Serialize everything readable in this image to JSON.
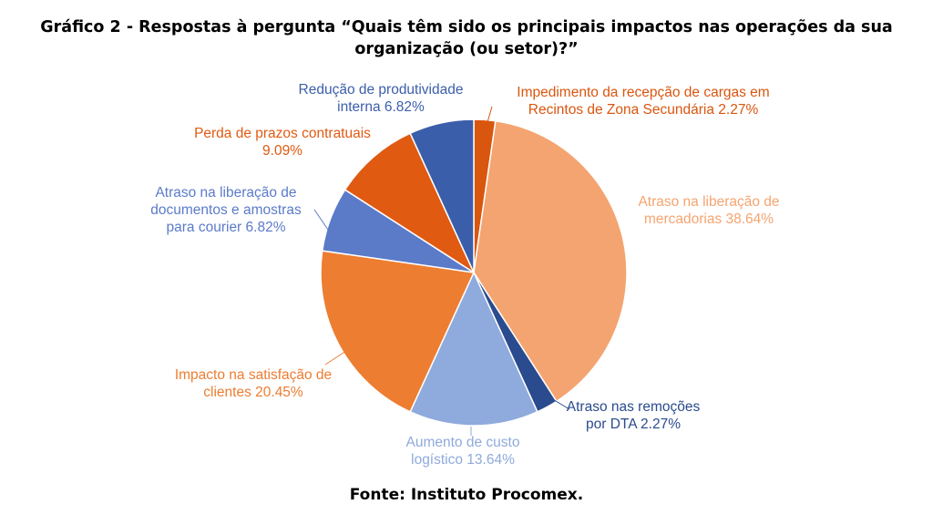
{
  "title_line1": "Gráfico 2 - Respostas à pergunta “Quais têm sido os principais impactos nas operações da sua",
  "title_line2": "organização (ou setor)?”",
  "source": "Fonte: Instituto Procomex.",
  "chart_data": {
    "type": "pie",
    "title": "Gráfico 2 - Respostas à pergunta “Quais têm sido os principais impactos nas operações da sua organização (ou setor)?”",
    "slices": [
      {
        "label_lines": [
          "Impedimento da recepção de cargas em",
          "Recintos de Zona Secundária 2.27%"
        ],
        "value": 2.27,
        "color": "#D9560F"
      },
      {
        "label_lines": [
          "Atraso na liberação de",
          "mercadorias 38.64%"
        ],
        "value": 38.64,
        "color": "#F4A470"
      },
      {
        "label_lines": [
          "Atraso nas remoções",
          "por DTA 2.27%"
        ],
        "value": 2.27,
        "color": "#2A4B8D"
      },
      {
        "label_lines": [
          "Aumento de custo",
          "logístico 13.64%"
        ],
        "value": 13.64,
        "color": "#8FAADC"
      },
      {
        "label_lines": [
          "Impacto na satisfação de",
          "clientes 20.45%"
        ],
        "value": 20.45,
        "color": "#ED7D31"
      },
      {
        "label_lines": [
          "Atraso na liberação de",
          "documentos e amostras",
          "para courier 6.82%"
        ],
        "value": 6.82,
        "color": "#5B7BC9"
      },
      {
        "label_lines": [
          "Perda de prazos contratuais",
          "9.09%"
        ],
        "value": 9.09,
        "color": "#E05A12"
      },
      {
        "label_lines": [
          "Redução de produtividade",
          "interna 6.82%"
        ],
        "value": 6.82,
        "color": "#3B5EAA"
      }
    ],
    "label_colors": [
      "#D9560F",
      "#F4A470",
      "#2A4B8D",
      "#8FAADC",
      "#ED7D31",
      "#5B7BC9",
      "#E05A12",
      "#3B5EAA"
    ]
  }
}
